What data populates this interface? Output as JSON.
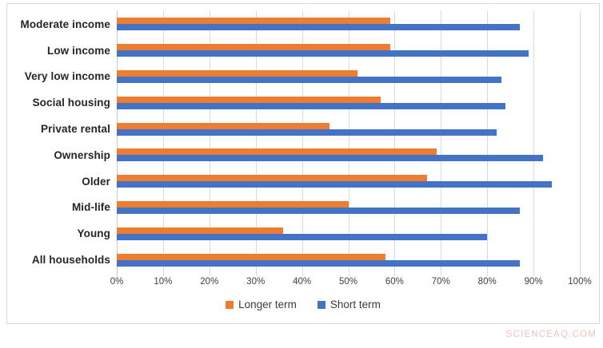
{
  "watermark": "SCIENCEAQ.COM",
  "colors": {
    "longer_term": "#ED7D31",
    "short_term": "#4472C4",
    "gridline": "#d9d9d9",
    "frame_border": "#d9d9d9",
    "category_text": "#262626",
    "tick_text": "#404040",
    "watermark_text": "#f0c2c2",
    "background": "#ffffff"
  },
  "chart_data": {
    "type": "bar",
    "orientation": "horizontal",
    "title": "",
    "xlabel": "",
    "ylabel": "",
    "categories": [
      "Moderate income",
      "Low income",
      "Very low income",
      "Social housing",
      "Private rental",
      "Ownership",
      "Older",
      "Mid-life",
      "Young",
      "All households"
    ],
    "series": [
      {
        "name": "Longer term",
        "color": "#ED7D31",
        "values": [
          59,
          59,
          52,
          57,
          46,
          69,
          67,
          50,
          36,
          58
        ]
      },
      {
        "name": "Short term",
        "color": "#4472C4",
        "values": [
          87,
          89,
          83,
          84,
          82,
          92,
          94,
          87,
          80,
          87
        ]
      }
    ],
    "x_ticks": [
      "0%",
      "10%",
      "20%",
      "30%",
      "40%",
      "50%",
      "60%",
      "70%",
      "80%",
      "90%",
      "100%"
    ],
    "xlim": [
      0,
      100
    ],
    "grid": true,
    "legend_position": "bottom",
    "units": "percent"
  }
}
